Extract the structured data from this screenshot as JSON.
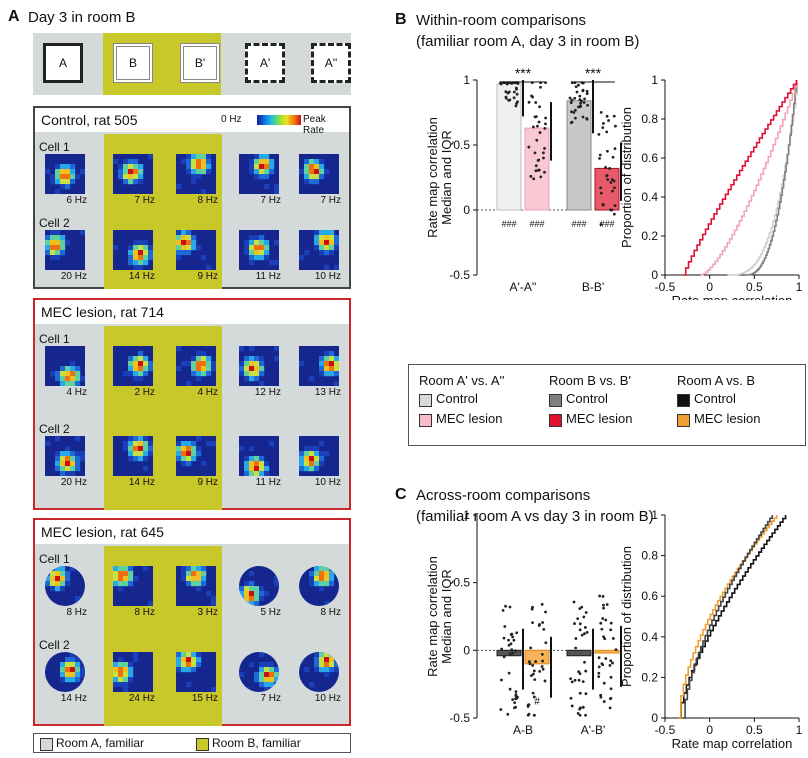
{
  "panelA": {
    "letter": "A",
    "title": "Day 3 in room B",
    "rooms": [
      "A",
      "B",
      "B'",
      "A'",
      "A''"
    ],
    "colorbar": {
      "low": "0 Hz",
      "high": "Peak Rate"
    },
    "legend": {
      "roomA": "Room A, familiar",
      "roomB": "Room B, familiar"
    },
    "groups": [
      {
        "title": "Control, rat 505",
        "shape": "square",
        "cells": [
          {
            "label": "Cell 1",
            "rates": [
              "6 Hz",
              "7 Hz",
              "8 Hz",
              "7 Hz",
              "7 Hz"
            ]
          },
          {
            "label": "Cell 2",
            "rates": [
              "20 Hz",
              "14 Hz",
              "9 Hz",
              "11 Hz",
              "10 Hz"
            ]
          }
        ]
      },
      {
        "title": "MEC lesion, rat 714",
        "shape": "square",
        "cells": [
          {
            "label": "Cell 1",
            "rates": [
              "4 Hz",
              "2 Hz",
              "4 Hz",
              "12 Hz",
              "13 Hz"
            ]
          },
          {
            "label": "Cell 2",
            "rates": [
              "20 Hz",
              "14 Hz",
              "9 Hz",
              "11 Hz",
              "10 Hz"
            ]
          }
        ]
      },
      {
        "title": "MEC lesion, rat 645",
        "shape": "mixed",
        "cells": [
          {
            "label": "Cell 1",
            "rates": [
              "8 Hz",
              "8 Hz",
              "3 Hz",
              "5 Hz",
              "8 Hz"
            ]
          },
          {
            "label": "Cell 2",
            "rates": [
              "14 Hz",
              "24 Hz",
              "15 Hz",
              "7 Hz",
              "10 Hz"
            ]
          }
        ]
      }
    ]
  },
  "panelB": {
    "letter": "B",
    "title1": "Within-room comparisons",
    "title2": "(familiar room A, day 3 in room B)",
    "ylabel1": "Rate map correlation",
    "ylabel2": "Median and IQR",
    "cdf_xlabel": "Rate map correlation",
    "cdf_ylabel": "Proportion of distribution",
    "sig": "***",
    "hash": "###"
  },
  "panelC": {
    "letter": "C",
    "title1": "Across-room comparisons",
    "title2": "(familiar room A vs day 3 in room B)",
    "ylabel1": "Rate map correlation",
    "ylabel2": "Median and IQR",
    "cdf_xlabel": "Rate map correlation",
    "cdf_ylabel": "Proportion of distribution",
    "hash": "#"
  },
  "legendBox": {
    "cols": [
      {
        "title": "Room A' vs. A''",
        "items": [
          {
            "label": "Control",
            "color": "#d9d9d9"
          },
          {
            "label": "MEC lesion",
            "color": "#f7bcc8"
          }
        ]
      },
      {
        "title": "Room B vs. B'",
        "items": [
          {
            "label": "Control",
            "color": "#808080"
          },
          {
            "label": "MEC lesion",
            "color": "#e0102e"
          }
        ]
      },
      {
        "title": "Room A vs. B",
        "items": [
          {
            "label": "Control",
            "color": "#111111"
          },
          {
            "label": "MEC lesion",
            "color": "#f0a030"
          }
        ]
      }
    ]
  },
  "chart_data": [
    {
      "type": "bar",
      "title": "Within-room comparisons",
      "xlabel": "",
      "ylabel": "Rate map correlation Median and IQR",
      "categories": [
        "A'-A''",
        "B-B'"
      ],
      "series": [
        {
          "name": "Control",
          "values": [
            0.97,
            0.84
          ]
        },
        {
          "name": "MEC lesion",
          "values": [
            0.63,
            0.32
          ]
        }
      ],
      "ylim": [
        -0.5,
        1
      ],
      "yticks": [
        "-0.5",
        "0",
        "0.5",
        "1"
      ]
    },
    {
      "type": "line",
      "xlabel": "Rate map correlation",
      "ylabel": "Proportion of distribution",
      "xlim": [
        -0.5,
        1
      ],
      "ylim": [
        0,
        1
      ],
      "xticks": [
        "-0.5",
        "0",
        "0.5",
        "1"
      ],
      "yticks": [
        "0",
        "0.2",
        "0.4",
        "0.6",
        "0.8",
        "1"
      ]
    },
    {
      "type": "bar",
      "title": "Across-room comparisons",
      "xlabel": "",
      "ylabel": "Rate map correlation Median and IQR",
      "categories": [
        "A-B",
        "A'-B'"
      ],
      "series": [
        {
          "name": "Control",
          "values": [
            -0.04,
            -0.04
          ]
        },
        {
          "name": "MEC lesion",
          "values": [
            -0.1,
            -0.02
          ]
        }
      ],
      "ylim": [
        -0.5,
        1
      ],
      "yticks": [
        "-0.5",
        "0",
        "0.5",
        "1"
      ]
    },
    {
      "type": "line",
      "xlabel": "Rate map correlation",
      "ylabel": "Proportion of distribution",
      "xlim": [
        -0.5,
        1
      ],
      "ylim": [
        0,
        1
      ],
      "xticks": [
        "-0.5",
        "0",
        "0.5",
        "1"
      ],
      "yticks": [
        "0",
        "0.2",
        "0.4",
        "0.6",
        "0.8",
        "1"
      ]
    }
  ]
}
